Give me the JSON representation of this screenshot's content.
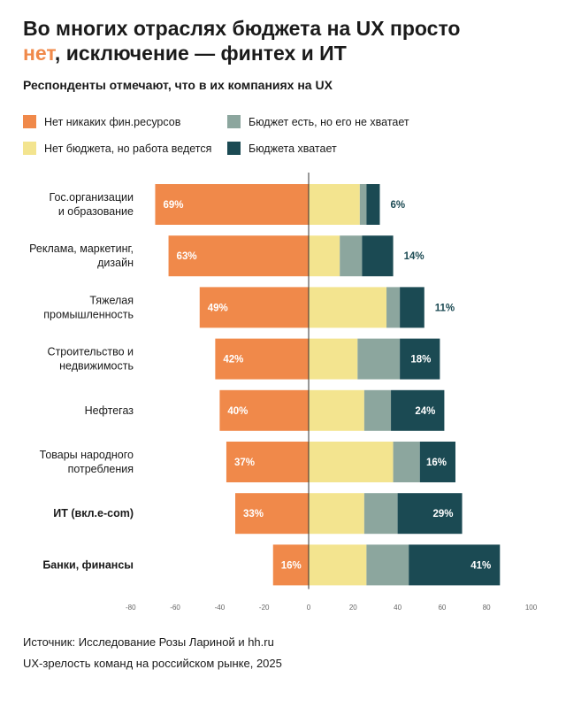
{
  "header": {
    "title_line1": "Во многих отраслях бюджета на UX просто",
    "title_accent": "нет",
    "title_rest": ", исключение — финтех и ИТ",
    "subtitle": "Респонденты отмечают, что в их компаниях на UX"
  },
  "colors": {
    "no_resources": "#f0894a",
    "no_budget_work": "#f3e48f",
    "budget_insufficient": "#8ca69e",
    "budget_enough": "#1b4a53",
    "accent": "#f0894a"
  },
  "legend": [
    {
      "label": "Нет никаких фин.ресурсов",
      "color": "#f0894a"
    },
    {
      "label": "Бюджет есть, но его не хватает",
      "color": "#8ca69e"
    },
    {
      "label": "Нет бюджета, но работа ведется",
      "color": "#f3e48f"
    },
    {
      "label": "Бюджета хватает",
      "color": "#1b4a53"
    }
  ],
  "chart_data": {
    "type": "bar",
    "orientation": "horizontal-diverging-stacked",
    "xlim": [
      -80,
      100
    ],
    "xticks": [
      -80,
      -60,
      -40,
      -20,
      0,
      20,
      40,
      60,
      80,
      100
    ],
    "categories": [
      {
        "lines": [
          "Гос.организации",
          "и образование"
        ],
        "bold": false
      },
      {
        "lines": [
          "Реклама, маркетинг,",
          "дизайн"
        ],
        "bold": false
      },
      {
        "lines": [
          "Тяжелая",
          "промышленность"
        ],
        "bold": false
      },
      {
        "lines": [
          "Строительство и",
          "недвижимость"
        ],
        "bold": false
      },
      {
        "lines": [
          "Нефтегаз"
        ],
        "bold": false
      },
      {
        "lines": [
          "Товары народного",
          "потребления"
        ],
        "bold": false
      },
      {
        "lines": [
          "ИТ (вкл.e-com)"
        ],
        "bold": true
      },
      {
        "lines": [
          "Банки, финансы"
        ],
        "bold": true
      }
    ],
    "series": [
      {
        "name": "Нет никаких фин.ресурсов",
        "values": [
          -69,
          -63,
          -49,
          -42,
          -40,
          -37,
          -33,
          -16
        ],
        "labels": [
          "69%",
          "63%",
          "49%",
          "42%",
          "40%",
          "37%",
          "33%",
          "16%"
        ]
      },
      {
        "name": "Нет бюджета, но работа ведется",
        "values": [
          23,
          14,
          35,
          22,
          25,
          38,
          25,
          26
        ]
      },
      {
        "name": "Бюджет есть, но его не хватает",
        "values": [
          3,
          10,
          6,
          19,
          12,
          12,
          15,
          19
        ]
      },
      {
        "name": "Бюджета хватает",
        "values": [
          6,
          14,
          11,
          18,
          24,
          16,
          29,
          41
        ],
        "labels": [
          "6%",
          "14%",
          "11%",
          "18%",
          "24%",
          "16%",
          "29%",
          "41%"
        ]
      }
    ]
  },
  "source": {
    "line1": "Источник: Исследование Розы Лариной и hh.ru",
    "line2": "UX-зрелость команд на российском рынке, 2025"
  }
}
